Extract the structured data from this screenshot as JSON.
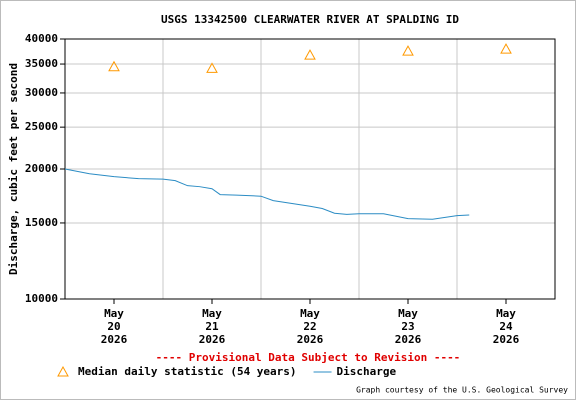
{
  "chart_data": {
    "type": "line",
    "title": "USGS 13342500 CLEARWATER RIVER AT SPALDING ID",
    "y_label": "Discharge, cubic feet per second",
    "note": "---- Provisional Data Subject to Revision ----",
    "credit": "Graph courtesy of the U.S. Geological Survey",
    "log_y": true,
    "grid": true,
    "ylim": [
      10000,
      40000
    ],
    "yticks": [
      10000,
      15000,
      20000,
      25000,
      30000,
      35000,
      40000
    ],
    "xlim": [
      "2026-05-20T00:00",
      "2026-05-25T00:00"
    ],
    "xticks": [
      {
        "value": "2026-05-20T12:00",
        "label": "May\n20\n2026"
      },
      {
        "value": "2026-05-21T12:00",
        "label": "May\n21\n2026"
      },
      {
        "value": "2026-05-22T12:00",
        "label": "May\n22\n2026"
      },
      {
        "value": "2026-05-23T12:00",
        "label": "May\n23\n2026"
      },
      {
        "value": "2026-05-24T12:00",
        "label": "May\n24\n2026"
      }
    ],
    "xgrid": [
      "2026-05-21T00:00",
      "2026-05-22T00:00",
      "2026-05-23T00:00",
      "2026-05-24T00:00"
    ],
    "series": [
      {
        "name": "Median daily statistic (54 years)",
        "color": "#ff9900",
        "marker": "triangle",
        "x": [
          "2026-05-20T12:00",
          "2026-05-21T12:00",
          "2026-05-22T12:00",
          "2026-05-23T12:00",
          "2026-05-24T12:00"
        ],
        "values": [
          34500,
          34200,
          36700,
          37500,
          37900
        ]
      },
      {
        "name": "Discharge",
        "color": "#2b8cc4",
        "marker": "line",
        "x": [
          "2026-05-20T00:00",
          "2026-05-20T06:00",
          "2026-05-20T12:00",
          "2026-05-20T18:00",
          "2026-05-21T00:00",
          "2026-05-21T03:00",
          "2026-05-21T06:00",
          "2026-05-21T09:00",
          "2026-05-21T12:00",
          "2026-05-21T14:00",
          "2026-05-21T18:00",
          "2026-05-22T00:00",
          "2026-05-22T03:00",
          "2026-05-22T12:00",
          "2026-05-22T15:00",
          "2026-05-22T18:00",
          "2026-05-22T21:00",
          "2026-05-23T00:00",
          "2026-05-23T06:00",
          "2026-05-23T12:00",
          "2026-05-23T18:00",
          "2026-05-24T00:00",
          "2026-05-24T03:00"
        ],
        "values": [
          20000,
          19500,
          19200,
          19000,
          18950,
          18800,
          18300,
          18200,
          18000,
          17450,
          17400,
          17300,
          16900,
          16400,
          16200,
          15800,
          15700,
          15750,
          15750,
          15350,
          15300,
          15600,
          15650
        ]
      }
    ]
  }
}
